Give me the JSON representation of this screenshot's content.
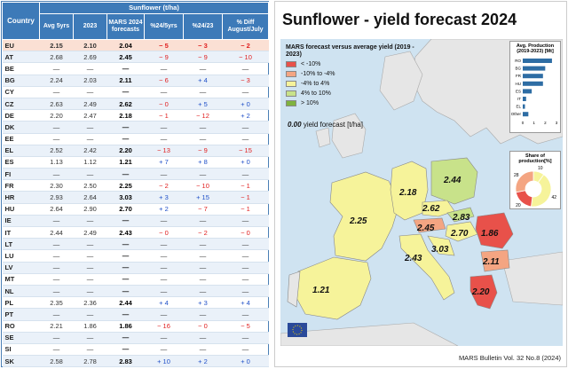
{
  "table": {
    "super_header": "Sunflower (t/ha)",
    "headers": {
      "country": "Country",
      "avg5": "Avg 5yrs",
      "y2023": "2023",
      "mars": "MARS 2024 forecasts",
      "d5": "%24/5yrs",
      "d23": "%24/23",
      "diff": "% Diff August/July"
    },
    "rows": [
      {
        "c": "EU",
        "a": "2.15",
        "y": "2.10",
        "m": "2.04",
        "d5": "− 5",
        "d23": "− 3",
        "df": "− 2"
      },
      {
        "c": "AT",
        "a": "2.68",
        "y": "2.69",
        "m": "2.45",
        "d5": "− 9",
        "d23": "− 9",
        "df": "− 10"
      },
      {
        "c": "BE",
        "a": "—",
        "y": "—",
        "m": "—",
        "d5": "—",
        "d23": "—",
        "df": "—"
      },
      {
        "c": "BG",
        "a": "2.24",
        "y": "2.03",
        "m": "2.11",
        "d5": "− 6",
        "d23": "+ 4",
        "df": "− 3"
      },
      {
        "c": "CY",
        "a": "—",
        "y": "—",
        "m": "—",
        "d5": "—",
        "d23": "—",
        "df": "—"
      },
      {
        "c": "CZ",
        "a": "2.63",
        "y": "2.49",
        "m": "2.62",
        "d5": "− 0",
        "d23": "+ 5",
        "df": "+ 0"
      },
      {
        "c": "DE",
        "a": "2.20",
        "y": "2.47",
        "m": "2.18",
        "d5": "− 1",
        "d23": "− 12",
        "df": "+ 2"
      },
      {
        "c": "DK",
        "a": "—",
        "y": "—",
        "m": "—",
        "d5": "—",
        "d23": "—",
        "df": "—"
      },
      {
        "c": "EE",
        "a": "—",
        "y": "—",
        "m": "—",
        "d5": "—",
        "d23": "—",
        "df": "—"
      },
      {
        "c": "EL",
        "a": "2.52",
        "y": "2.42",
        "m": "2.20",
        "d5": "− 13",
        "d23": "− 9",
        "df": "− 15"
      },
      {
        "c": "ES",
        "a": "1.13",
        "y": "1.12",
        "m": "1.21",
        "d5": "+ 7",
        "d23": "+ 8",
        "df": "+ 0"
      },
      {
        "c": "FI",
        "a": "—",
        "y": "—",
        "m": "—",
        "d5": "—",
        "d23": "—",
        "df": "—"
      },
      {
        "c": "FR",
        "a": "2.30",
        "y": "2.50",
        "m": "2.25",
        "d5": "− 2",
        "d23": "− 10",
        "df": "− 1"
      },
      {
        "c": "HR",
        "a": "2.93",
        "y": "2.64",
        "m": "3.03",
        "d5": "+ 3",
        "d23": "+ 15",
        "df": "− 1"
      },
      {
        "c": "HU",
        "a": "2.64",
        "y": "2.90",
        "m": "2.70",
        "d5": "+ 2",
        "d23": "− 7",
        "df": "− 1"
      },
      {
        "c": "IE",
        "a": "—",
        "y": "—",
        "m": "—",
        "d5": "—",
        "d23": "—",
        "df": "—"
      },
      {
        "c": "IT",
        "a": "2.44",
        "y": "2.49",
        "m": "2.43",
        "d5": "− 0",
        "d23": "− 2",
        "df": "− 0"
      },
      {
        "c": "LT",
        "a": "—",
        "y": "—",
        "m": "—",
        "d5": "—",
        "d23": "—",
        "df": "—"
      },
      {
        "c": "LU",
        "a": "—",
        "y": "—",
        "m": "—",
        "d5": "—",
        "d23": "—",
        "df": "—"
      },
      {
        "c": "LV",
        "a": "—",
        "y": "—",
        "m": "—",
        "d5": "—",
        "d23": "—",
        "df": "—"
      },
      {
        "c": "MT",
        "a": "—",
        "y": "—",
        "m": "—",
        "d5": "—",
        "d23": "—",
        "df": "—"
      },
      {
        "c": "NL",
        "a": "—",
        "y": "—",
        "m": "—",
        "d5": "—",
        "d23": "—",
        "df": "—"
      },
      {
        "c": "PL",
        "a": "2.35",
        "y": "2.36",
        "m": "2.44",
        "d5": "+ 4",
        "d23": "+ 3",
        "df": "+ 4"
      },
      {
        "c": "PT",
        "a": "—",
        "y": "—",
        "m": "—",
        "d5": "—",
        "d23": "—",
        "df": "—"
      },
      {
        "c": "RO",
        "a": "2.21",
        "y": "1.86",
        "m": "1.86",
        "d5": "− 16",
        "d23": "− 0",
        "df": "− 5"
      },
      {
        "c": "SE",
        "a": "—",
        "y": "—",
        "m": "—",
        "d5": "—",
        "d23": "—",
        "df": "—"
      },
      {
        "c": "SI",
        "a": "—",
        "y": "—",
        "m": "—",
        "d5": "—",
        "d23": "—",
        "df": "—"
      },
      {
        "c": "SK",
        "a": "2.58",
        "y": "2.78",
        "m": "2.83",
        "d5": "+ 10",
        "d23": "+ 2",
        "df": "+ 0"
      }
    ]
  },
  "map": {
    "title": "Sunflower - yield forecast 2024",
    "legend_title": "MARS forecast versus average yield (2019 - 2023)",
    "legend": [
      {
        "label": "< -10%",
        "color": "#e8514a"
      },
      {
        "label": "-10% to -4%",
        "color": "#f4a582"
      },
      {
        "label": "-4% to 4%",
        "color": "#f6f39a"
      },
      {
        "label": "4% to 10%",
        "color": "#c8e28a"
      },
      {
        "label": "> 10%",
        "color": "#7fb33f"
      }
    ],
    "forecast_value": "0.00",
    "forecast_label": "yield forecast [t/ha]",
    "region_values": {
      "ES": "1.21",
      "FR": "2.25",
      "DE": "2.18",
      "PL": "2.44",
      "CZ": "2.62",
      "SK": "2.83",
      "AT": "2.45",
      "HU": "2.70",
      "HR": "3.03",
      "IT": "2.43",
      "RO": "1.86",
      "BG": "2.11",
      "EL": "2.20"
    },
    "avg_production": {
      "title": "Avg. Production (2019-2023) [Mt]",
      "countries": [
        "RO",
        "BG",
        "FR",
        "HU",
        "ES",
        "IT",
        "EL",
        "Other"
      ],
      "values": [
        2.6,
        2.0,
        1.8,
        1.8,
        0.8,
        0.3,
        0.2,
        0.5
      ],
      "ticks": [
        "0",
        "1",
        "2",
        "3"
      ],
      "color": "#2e6da4"
    },
    "share": {
      "title": "Share of production[%]",
      "values": [
        10,
        42,
        20,
        28
      ],
      "labels": [
        "10",
        "42",
        "20",
        "28"
      ],
      "colors": [
        "#f6f39a",
        "#f6f39a",
        "#e8514a",
        "#f4a582"
      ]
    },
    "footer": "MARS Bulletin Vol. 32 No.8 (2024)"
  }
}
